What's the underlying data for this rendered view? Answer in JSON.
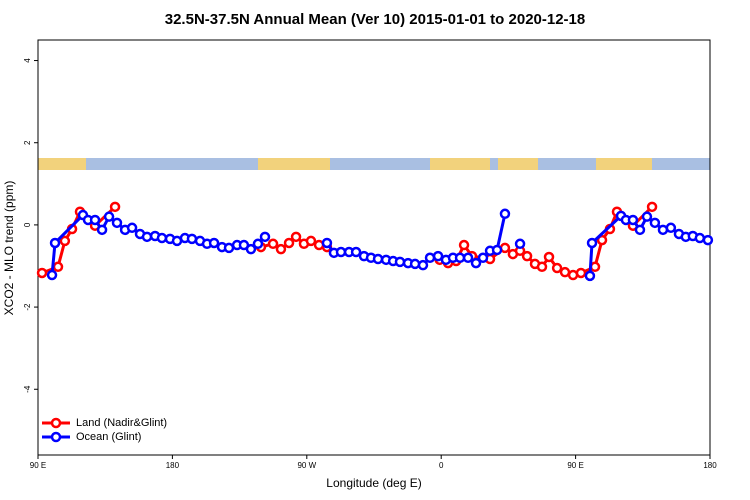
{
  "chart_data": {
    "type": "line",
    "title": "32.5N-37.5N Annual Mean (Ver 10)   2015-01-01 to 2020-12-18",
    "x_label": "Longitude (deg E)",
    "y_label": "XCO2 - MLO trend (ppm)",
    "xlim": [
      90,
      540
    ],
    "xticks": [
      {
        "value": 90,
        "label": "90 E"
      },
      {
        "value": 180,
        "label": "180"
      },
      {
        "value": 270,
        "label": "90 W"
      },
      {
        "value": 360,
        "label": "0"
      },
      {
        "value": 450,
        "label": "90 E"
      },
      {
        "value": 540,
        "label": "180"
      }
    ],
    "ylim": [
      -5.6,
      4.5
    ],
    "yticks": [
      -4,
      -2,
      0,
      2,
      4
    ],
    "legend": "bottomleft",
    "series": [
      {
        "name": "Land (Nadir&Glint)",
        "color": "#ff0000",
        "x": [
          92.7,
          103.4,
          108,
          112.8,
          118.1,
          128.2,
          141.6,
          null,
          239.3,
          247.4,
          252.7,
          258.1,
          262.8,
          268.1,
          272.8,
          278.2,
          283.5,
          null,
          359,
          364.6,
          370,
          375.3,
          380.6,
          392.7,
          402.7,
          408,
          412.8,
          417.5,
          422.8,
          427.5,
          432.2,
          437.6,
          442.9,
          448.3,
          453.6,
          463,
          467.7,
          473,
          477.7,
          488.4,
          501.2
        ],
        "values": [
          -1.17,
          -1.02,
          -0.39,
          -0.1,
          0.32,
          -0.02,
          0.44,
          null,
          -0.54,
          -0.46,
          -0.59,
          -0.44,
          -0.29,
          -0.46,
          -0.39,
          -0.49,
          -0.54,
          null,
          -0.85,
          -0.93,
          -0.88,
          -0.49,
          -0.76,
          -0.83,
          -0.56,
          -0.71,
          -0.63,
          -0.76,
          -0.95,
          -1.02,
          -0.78,
          -1.05,
          -1.15,
          -1.22,
          -1.17,
          -1.02,
          -0.37,
          -0.1,
          0.32,
          -0.02,
          0.44
        ]
      },
      {
        "name": "Ocean (Glint)",
        "color": "#0000ff",
        "x": [
          99.4,
          101.4,
          120.1,
          123.5,
          128.2,
          132.9,
          137.6,
          142.9,
          148.3,
          153,
          158.3,
          163,
          168.4,
          173,
          178.4,
          183.1,
          188.4,
          193.1,
          198.5,
          203.2,
          207.9,
          213.2,
          217.9,
          223.3,
          227.9,
          232.6,
          237.3,
          242,
          null,
          283.5,
          288.2,
          292.9,
          298.3,
          303,
          308.3,
          313,
          317.7,
          323.1,
          327.8,
          332.4,
          337.8,
          342.5,
          347.8,
          352.5,
          357.9,
          363.2,
          367.9,
          372.6,
          378,
          383.3,
          388,
          392.7,
          397.4,
          402.7,
          null,
          412.8,
          null,
          459.6,
          461,
          480.4,
          483.7,
          488.4,
          493.1,
          497.8,
          503.1,
          508.5,
          513.8,
          519.2,
          523.8,
          528.5,
          533.2,
          538.6
        ],
        "values": [
          -1.22,
          -0.44,
          0.24,
          0.12,
          0.12,
          -0.12,
          0.2,
          0.05,
          -0.12,
          -0.07,
          -0.22,
          -0.29,
          -0.27,
          -0.32,
          -0.34,
          -0.39,
          -0.32,
          -0.34,
          -0.39,
          -0.46,
          -0.44,
          -0.54,
          -0.56,
          -0.49,
          -0.49,
          -0.59,
          -0.46,
          -0.29,
          null,
          -0.44,
          -0.68,
          -0.66,
          -0.66,
          -0.66,
          -0.76,
          -0.8,
          -0.83,
          -0.85,
          -0.88,
          -0.9,
          -0.93,
          -0.95,
          -0.98,
          -0.8,
          -0.76,
          -0.85,
          -0.8,
          -0.8,
          -0.8,
          -0.93,
          -0.8,
          -0.63,
          -0.61,
          0.27,
          null,
          -0.46,
          null,
          -1.24,
          -0.44,
          0.22,
          0.12,
          0.12,
          -0.12,
          0.2,
          0.05,
          -0.12,
          -0.07,
          -0.22,
          -0.29,
          -0.27,
          -0.32,
          -0.37
        ]
      }
    ]
  }
}
